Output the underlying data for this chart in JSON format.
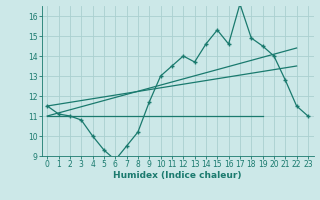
{
  "title": "",
  "xlabel": "Humidex (Indice chaleur)",
  "background_color": "#cce8e8",
  "grid_color": "#aad0d0",
  "line_color": "#1a7a6e",
  "x_main": [
    0,
    1,
    2,
    3,
    4,
    5,
    6,
    7,
    8,
    9,
    10,
    11,
    12,
    13,
    14,
    15,
    16,
    17,
    18,
    19,
    20,
    21,
    22,
    23
  ],
  "y_main": [
    11.5,
    11.1,
    11.0,
    10.8,
    10.0,
    9.3,
    8.8,
    9.5,
    10.2,
    11.7,
    13.0,
    13.5,
    14.0,
    13.7,
    14.6,
    15.3,
    14.6,
    16.6,
    14.9,
    14.5,
    14.0,
    12.8,
    11.5,
    11.0
  ],
  "flat_line": [
    [
      0,
      19
    ],
    [
      11.0,
      11.0
    ]
  ],
  "rise_line1": [
    [
      0,
      22
    ],
    [
      11.0,
      14.4
    ]
  ],
  "rise_line2": [
    [
      0,
      22
    ],
    [
      11.5,
      13.5
    ]
  ],
  "ylim": [
    9,
    16.5
  ],
  "yticks": [
    9,
    10,
    11,
    12,
    13,
    14,
    15,
    16
  ],
  "xticks": [
    0,
    1,
    2,
    3,
    4,
    5,
    6,
    7,
    8,
    9,
    10,
    11,
    12,
    13,
    14,
    15,
    16,
    17,
    18,
    19,
    20,
    21,
    22,
    23
  ],
  "tick_fontsize": 5.5,
  "xlabel_fontsize": 6.5
}
